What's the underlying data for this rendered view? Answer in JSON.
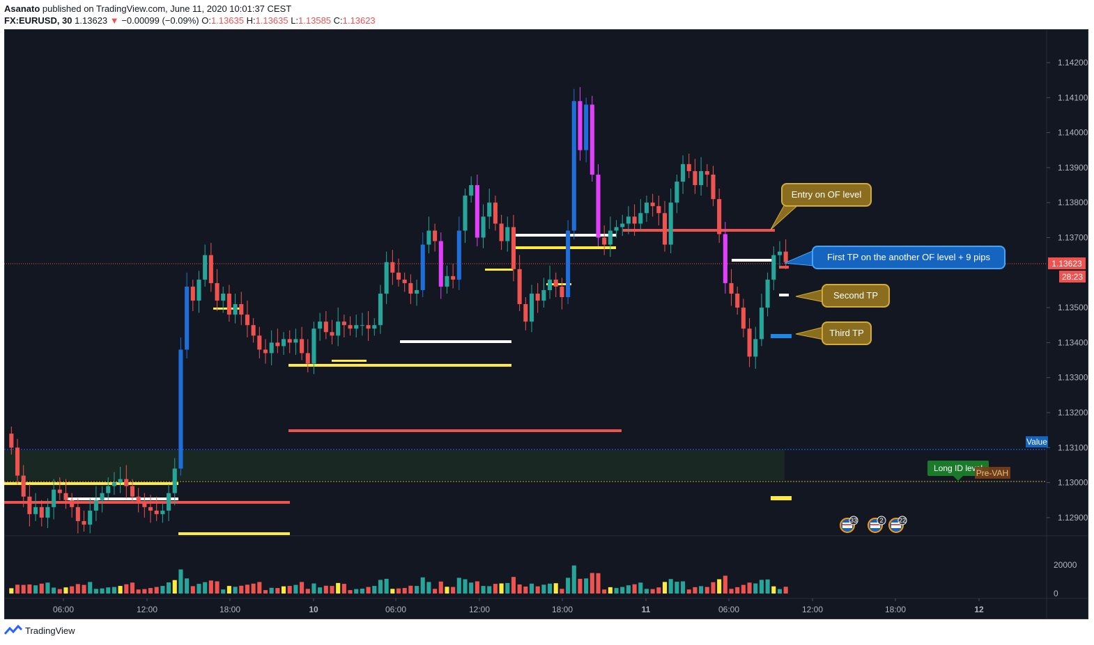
{
  "header": {
    "author": "Asanato",
    "published": "published on TradingView.com, June 11, 2020 10:01:37 CEST",
    "symbol": "FX:EURUSD, 30",
    "last": "1.13623",
    "change_arrow": "▼",
    "change": "−0.00099 (−0.09%)",
    "o_label": "O:",
    "o": "1.13635",
    "h_label": "H:",
    "h": "1.13635",
    "l_label": "L:",
    "l": "1.13585",
    "c_label": "C:",
    "c": "1.13623"
  },
  "footer": {
    "brand": "TradingView",
    "logo_icon": "tradingview-logo-icon"
  },
  "colors": {
    "bg": "#131722",
    "up": "#26a69a",
    "down": "#ef5350",
    "up_strong": "#1e6fd9",
    "down_strong": "#e040fb",
    "yellow": "#ffeb3b",
    "white": "#ffffff",
    "grid": "#2a2e39",
    "axis_text": "#b2b5be",
    "gold": "#8a6d1e",
    "gold_border": "#d4ac3a",
    "blue_call": "#1565c0"
  },
  "callouts": {
    "entry": "Entry on OF level",
    "first_tp": "First TP on the another OF level + 9 pips",
    "second_tp": "Second TP",
    "third_tp": "Third TP",
    "long_id": "Long ID level",
    "pre_vah": "Pre-VAH",
    "value": "Value"
  },
  "price_tags": {
    "last": "1.13623",
    "countdown": "28:23"
  },
  "events": [
    {
      "icon": "us-flag-icon",
      "count": "33"
    },
    {
      "icon": "us-flag-icon",
      "count": "2"
    },
    {
      "icon": "us-flag-icon",
      "count": "22"
    }
  ],
  "chart_data": {
    "type": "candlestick",
    "interval": "30",
    "y_axis": {
      "ticks": [
        "1.14200",
        "1.14100",
        "1.14000",
        "1.13900",
        "1.13800",
        "1.13700",
        "1.13500",
        "1.13400",
        "1.13300",
        "1.13200",
        "1.13100",
        "1.13000",
        "1.12900"
      ],
      "ylim": [
        1.1285,
        1.1428
      ]
    },
    "x_axis": {
      "ticks": [
        "06:00",
        "12:00",
        "18:00",
        "10",
        "06:00",
        "12:00",
        "18:00",
        "11",
        "06:00",
        "12:00",
        "18:00",
        "12"
      ]
    },
    "volume_axis": {
      "ticks": [
        "20000",
        "0"
      ]
    },
    "close_series": [
      1.131,
      1.1302,
      1.1296,
      1.1291,
      1.1293,
      1.129,
      1.1293,
      1.1298,
      1.1297,
      1.1295,
      1.1293,
      1.1289,
      1.1288,
      1.1292,
      1.1295,
      1.1297,
      1.1299,
      1.13,
      1.1301,
      1.1299,
      1.1296,
      1.1294,
      1.1293,
      1.1292,
      1.1291,
      1.1292,
      1.1297,
      1.1304,
      1.1338,
      1.1356,
      1.1352,
      1.1358,
      1.1365,
      1.1357,
      1.1352,
      1.1354,
      1.1348,
      1.1351,
      1.1348,
      1.1345,
      1.1342,
      1.1338,
      1.1337,
      1.134,
      1.1339,
      1.1341,
      1.134,
      1.1341,
      1.1337,
      1.1334,
      1.1344,
      1.1346,
      1.1343,
      1.1342,
      1.1346,
      1.1345,
      1.1344,
      1.1345,
      1.1345,
      1.1344,
      1.1345,
      1.1354,
      1.1363,
      1.136,
      1.1358,
      1.1357,
      1.1354,
      1.1355,
      1.1368,
      1.1372,
      1.1369,
      1.1356,
      1.1359,
      1.1358,
      1.1372,
      1.1382,
      1.1385,
      1.137,
      1.1376,
      1.138,
      1.1374,
      1.1369,
      1.1373,
      1.1361,
      1.1351,
      1.1346,
      1.1354,
      1.1352,
      1.1355,
      1.1358,
      1.1356,
      1.1353,
      1.1372,
      1.1409,
      1.1395,
      1.1408,
      1.1388,
      1.137,
      1.1368,
      1.1372,
      1.1373,
      1.1374,
      1.1376,
      1.1374,
      1.1377,
      1.138,
      1.1379,
      1.1377,
      1.1368,
      1.138,
      1.1386,
      1.1391,
      1.1389,
      1.1385,
      1.1389,
      1.1388,
      1.1381,
      1.1371,
      1.1357,
      1.1354,
      1.135,
      1.1344,
      1.1336,
      1.1341,
      1.135,
      1.1358,
      1.1365,
      1.1366,
      1.1363
    ]
  }
}
